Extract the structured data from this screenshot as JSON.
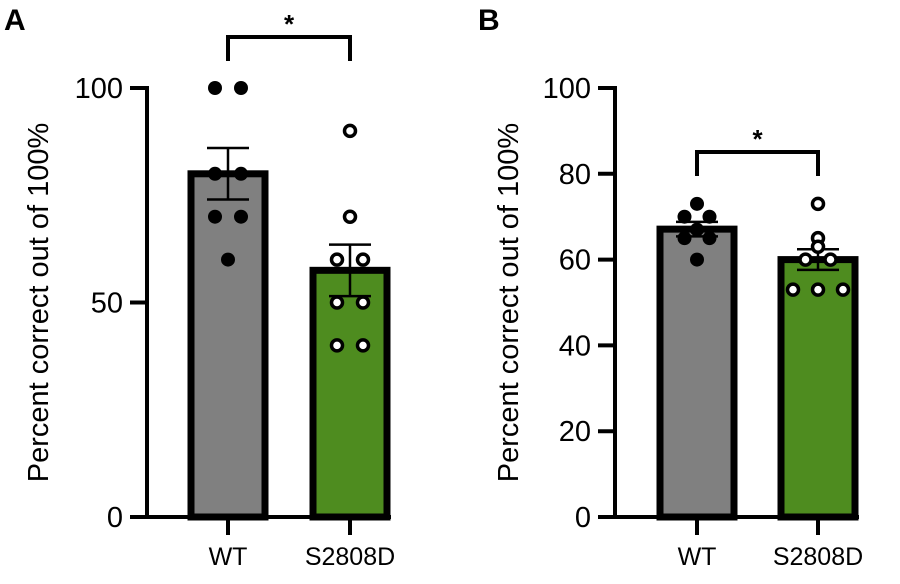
{
  "chart_data": [
    {
      "type": "bar",
      "panel_label": "A",
      "ylabel": "Percent correct out of 100%",
      "ylim": [
        0,
        100
      ],
      "yticks": [
        0,
        50,
        100
      ],
      "categories": [
        "WT",
        "S2808D"
      ],
      "means": [
        80,
        57.5
      ],
      "sem": [
        6,
        6
      ],
      "points": [
        [
          100,
          100,
          80,
          80,
          70,
          70,
          60
        ],
        [
          90,
          70,
          60,
          60,
          50,
          50,
          40,
          40
        ]
      ],
      "significance": "*",
      "colors": [
        "#808080",
        "#4e8c1f"
      ],
      "grid": false
    },
    {
      "type": "bar",
      "panel_label": "B",
      "ylabel": "Percent correct out of 100%",
      "ylim": [
        0,
        100
      ],
      "yticks": [
        0,
        20,
        40,
        60,
        80,
        100
      ],
      "categories": [
        "WT",
        "S2808D"
      ],
      "means": [
        67.1,
        60
      ],
      "sem": [
        1.7,
        2.4
      ],
      "points": [
        [
          73,
          70,
          70,
          67,
          65,
          65,
          60
        ],
        [
          73,
          65,
          63,
          60,
          60,
          53,
          53,
          53
        ]
      ],
      "significance": "*",
      "colors": [
        "#808080",
        "#4e8c1f"
      ],
      "grid": false
    }
  ]
}
